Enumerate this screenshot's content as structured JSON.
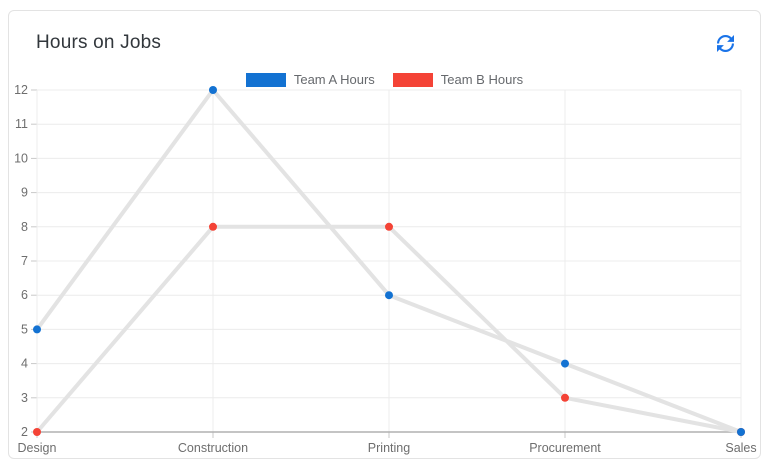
{
  "header": {
    "title": "Hours on Jobs",
    "refresh_icon": "refresh-circular-arrows"
  },
  "colors": {
    "team_a": "#1372d2",
    "team_b": "#f44336",
    "connector_line": "#e3e3e3",
    "grid": "#ececec",
    "tick": "#c9c9c9",
    "axis_line": "#b0b0b0",
    "tick_text": "#6e6e6e",
    "refresh_blue": "#1a73e8",
    "card_border": "#e3e3e3"
  },
  "legend": {
    "items": [
      {
        "label": "Team A Hours",
        "color": "#1372d2"
      },
      {
        "label": "Team B Hours",
        "color": "#f44336"
      }
    ]
  },
  "chart_data": {
    "type": "line",
    "title": "Hours on Jobs",
    "categories": [
      "Design",
      "Construction",
      "Printing",
      "Procurement",
      "Sales"
    ],
    "series": [
      {
        "name": "Team A Hours",
        "color": "#1372d2",
        "values": [
          5,
          12,
          6,
          4,
          2
        ]
      },
      {
        "name": "Team B Hours",
        "color": "#f44336",
        "values": [
          2,
          8,
          8,
          3,
          2
        ]
      }
    ],
    "xlabel": "",
    "ylabel": "",
    "ylim": [
      2,
      12
    ],
    "yticks": [
      2,
      3,
      4,
      5,
      6,
      7,
      8,
      9,
      10,
      11,
      12
    ],
    "grid": true,
    "legend_position": "top",
    "marker_style": "colored dot markers connected by light gray lines"
  }
}
